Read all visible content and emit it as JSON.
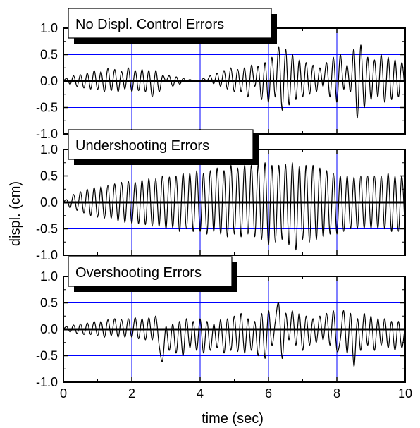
{
  "chart_data": {
    "type": "line",
    "xlabel": "time (sec)",
    "ylabel": "displ. (cm)",
    "xlim": [
      0,
      10
    ],
    "ylim": [
      -1.0,
      1.0
    ],
    "xticks": [
      0,
      2,
      4,
      6,
      8,
      10
    ],
    "yticks": [
      1.0,
      0.5,
      0.0,
      -0.5,
      -1.0
    ],
    "ytick_labels": [
      "1.0",
      "0.5",
      "0.0",
      "-0.5",
      "-1.0"
    ],
    "grid": true,
    "colors": {
      "grid": "#0000ff",
      "signal": "#000000",
      "zero_line": "#000000",
      "shadow": "#000000",
      "label_box": "#ffffff"
    },
    "panels": [
      {
        "title": "No Displ. Control Errors",
        "series": [
          {
            "x": [
              0,
              0.1,
              0.2,
              0.3,
              0.4,
              0.5,
              0.6,
              0.7,
              0.8,
              0.9,
              1.0,
              1.1,
              1.2,
              1.3,
              1.4,
              1.5,
              1.6,
              1.7,
              1.8,
              1.9,
              2.0,
              2.1,
              2.2,
              2.3,
              2.4,
              2.5,
              2.6,
              2.7,
              2.8,
              2.9,
              3.0,
              3.1,
              3.2,
              3.3,
              3.4,
              3.5,
              3.6,
              3.7,
              3.8,
              3.9,
              4.0,
              4.1,
              4.2,
              4.3,
              4.4,
              4.5,
              4.6,
              4.7,
              4.8,
              4.9,
              5.0,
              5.1,
              5.2,
              5.3,
              5.4,
              5.5,
              5.6,
              5.7,
              5.8,
              5.9,
              6.0,
              6.1,
              6.2,
              6.3,
              6.4,
              6.5,
              6.6,
              6.7,
              6.8,
              6.9,
              7.0,
              7.1,
              7.2,
              7.3,
              7.4,
              7.5,
              7.6,
              7.7,
              7.8,
              7.9,
              8.0,
              8.1,
              8.2,
              8.3,
              8.4,
              8.5,
              8.6,
              8.7,
              8.8,
              8.9,
              9.0,
              9.1,
              9.2,
              9.3,
              9.4,
              9.5,
              9.6,
              9.7,
              9.8,
              9.9,
              10.0
            ],
            "y": [
              0.0,
              0.05,
              -0.06,
              0.1,
              -0.1,
              0.12,
              -0.13,
              0.15,
              -0.15,
              0.2,
              -0.16,
              0.18,
              -0.2,
              0.24,
              -0.18,
              0.22,
              -0.2,
              0.18,
              -0.15,
              0.25,
              -0.2,
              0.2,
              -0.18,
              0.22,
              -0.2,
              0.2,
              -0.3,
              0.2,
              -0.2,
              0.1,
              0.0,
              0.1,
              -0.1,
              0.08,
              -0.06,
              0.05,
              0.0,
              0.03,
              0.0,
              0.01,
              0.0,
              0.05,
              0.0,
              0.1,
              -0.05,
              0.15,
              -0.1,
              0.2,
              -0.15,
              0.25,
              -0.2,
              0.22,
              -0.2,
              0.25,
              -0.3,
              0.3,
              -0.1,
              0.28,
              -0.35,
              0.35,
              -0.4,
              0.45,
              -0.3,
              0.65,
              -0.55,
              0.6,
              -0.45,
              0.5,
              -0.35,
              0.4,
              -0.3,
              0.35,
              -0.25,
              0.3,
              -0.2,
              0.25,
              -0.1,
              0.35,
              -0.3,
              0.45,
              -0.4,
              0.5,
              -0.15,
              0.3,
              -0.2,
              0.6,
              -0.7,
              0.68,
              -0.5,
              0.45,
              -0.35,
              0.4,
              -0.3,
              0.5,
              -0.4,
              0.45,
              -0.35,
              0.4,
              -0.3,
              0.35,
              -0.25
            ]
          }
        ]
      },
      {
        "title": "Undershooting Errors",
        "series": [
          {
            "x": [
              0,
              0.1,
              0.2,
              0.3,
              0.4,
              0.5,
              0.6,
              0.7,
              0.8,
              0.9,
              1.0,
              1.1,
              1.2,
              1.3,
              1.4,
              1.5,
              1.6,
              1.7,
              1.8,
              1.9,
              2.0,
              2.1,
              2.2,
              2.3,
              2.4,
              2.5,
              2.6,
              2.7,
              2.8,
              2.9,
              3.0,
              3.1,
              3.2,
              3.3,
              3.4,
              3.5,
              3.6,
              3.7,
              3.8,
              3.9,
              4.0,
              4.1,
              4.2,
              4.3,
              4.4,
              4.5,
              4.6,
              4.7,
              4.8,
              4.9,
              5.0,
              5.1,
              5.2,
              5.3,
              5.4,
              5.5,
              5.6,
              5.7,
              5.8,
              5.9,
              6.0,
              6.1,
              6.2,
              6.3,
              6.4,
              6.5,
              6.6,
              6.7,
              6.8,
              6.9,
              7.0,
              7.1,
              7.2,
              7.3,
              7.4,
              7.5,
              7.6,
              7.7,
              7.8,
              7.9,
              8.0,
              8.1,
              8.2,
              8.3,
              8.4,
              8.5,
              8.6,
              8.7,
              8.8,
              8.9,
              9.0,
              9.1,
              9.2,
              9.3,
              9.4,
              9.5,
              9.6,
              9.7,
              9.8,
              9.9,
              10.0
            ],
            "y": [
              0.0,
              0.05,
              -0.1,
              0.15,
              -0.15,
              0.2,
              -0.2,
              0.25,
              -0.25,
              0.28,
              -0.28,
              0.3,
              -0.3,
              0.32,
              -0.3,
              0.35,
              -0.35,
              0.38,
              -0.38,
              0.4,
              -0.4,
              0.38,
              -0.4,
              0.42,
              -0.42,
              0.45,
              -0.45,
              0.45,
              -0.45,
              0.5,
              -0.5,
              0.48,
              -0.48,
              0.5,
              -0.55,
              0.55,
              -0.5,
              0.55,
              -0.55,
              0.6,
              -0.55,
              0.55,
              -0.6,
              0.6,
              -0.55,
              0.65,
              -0.6,
              0.6,
              -0.65,
              0.7,
              -0.6,
              0.65,
              -0.65,
              0.7,
              -0.6,
              0.7,
              -0.65,
              0.72,
              -0.7,
              0.75,
              -0.8,
              0.7,
              -0.75,
              0.7,
              -0.7,
              0.72,
              -0.8,
              0.75,
              -0.9,
              0.68,
              -0.7,
              0.7,
              -0.75,
              0.7,
              -0.7,
              0.65,
              -0.65,
              0.6,
              -0.6,
              0.55,
              -0.6,
              0.5,
              -0.55,
              0.5,
              -0.5,
              0.48,
              -0.5,
              0.5,
              -0.5,
              0.5,
              -0.5,
              0.5,
              -0.5,
              0.5,
              -0.5,
              0.55,
              -0.55,
              0.5,
              -0.55,
              0.5,
              -0.6
            ]
          }
        ]
      },
      {
        "title": "Overshooting Errors",
        "series": [
          {
            "x": [
              0,
              0.1,
              0.2,
              0.3,
              0.4,
              0.5,
              0.6,
              0.7,
              0.8,
              0.9,
              1.0,
              1.1,
              1.2,
              1.3,
              1.4,
              1.5,
              1.6,
              1.7,
              1.8,
              1.9,
              2.0,
              2.1,
              2.2,
              2.3,
              2.4,
              2.5,
              2.6,
              2.7,
              2.8,
              2.9,
              3.0,
              3.1,
              3.2,
              3.3,
              3.4,
              3.5,
              3.6,
              3.7,
              3.8,
              3.9,
              4.0,
              4.1,
              4.2,
              4.3,
              4.4,
              4.5,
              4.6,
              4.7,
              4.8,
              4.9,
              5.0,
              5.1,
              5.2,
              5.3,
              5.4,
              5.5,
              5.6,
              5.7,
              5.8,
              5.9,
              6.0,
              6.1,
              6.2,
              6.3,
              6.4,
              6.5,
              6.6,
              6.7,
              6.8,
              6.9,
              7.0,
              7.1,
              7.2,
              7.3,
              7.4,
              7.5,
              7.6,
              7.7,
              7.8,
              7.9,
              8.0,
              8.1,
              8.2,
              8.3,
              8.4,
              8.5,
              8.6,
              8.7,
              8.8,
              8.9,
              9.0,
              9.1,
              9.2,
              9.3,
              9.4,
              9.5,
              9.6,
              9.7,
              9.8,
              9.9,
              10.0
            ],
            "y": [
              0.0,
              0.05,
              -0.05,
              0.08,
              -0.08,
              0.1,
              -0.1,
              0.12,
              -0.1,
              0.15,
              -0.12,
              0.15,
              -0.15,
              0.18,
              -0.12,
              0.2,
              -0.15,
              0.18,
              -0.15,
              0.2,
              -0.15,
              0.22,
              -0.18,
              0.2,
              -0.2,
              0.22,
              -0.2,
              0.25,
              -0.3,
              -0.6,
              0.05,
              -0.4,
              0.1,
              -0.45,
              0.15,
              -0.5,
              0.2,
              -0.35,
              0.15,
              -0.4,
              0.2,
              -0.45,
              0.15,
              -0.4,
              0.1,
              -0.35,
              0.18,
              -0.45,
              0.2,
              -0.4,
              0.25,
              -0.42,
              0.3,
              -0.45,
              0.2,
              -0.4,
              0.15,
              -0.5,
              0.3,
              -0.55,
              0.35,
              -0.3,
              0.15,
              0.48,
              -0.55,
              0.3,
              -0.2,
              0.35,
              -0.3,
              0.3,
              -0.4,
              0.25,
              -0.3,
              0.2,
              -0.25,
              0.25,
              -0.2,
              0.3,
              -0.3,
              0.35,
              -0.4,
              -0.2,
              0.35,
              -0.45,
              0.3,
              -0.7,
              0.2,
              -0.4,
              0.3,
              -0.3,
              0.25,
              -0.4,
              0.2,
              -0.3,
              0.2,
              -0.35,
              0.15,
              -0.4,
              0.15,
              -0.35,
              0.1
            ]
          }
        ]
      }
    ]
  }
}
